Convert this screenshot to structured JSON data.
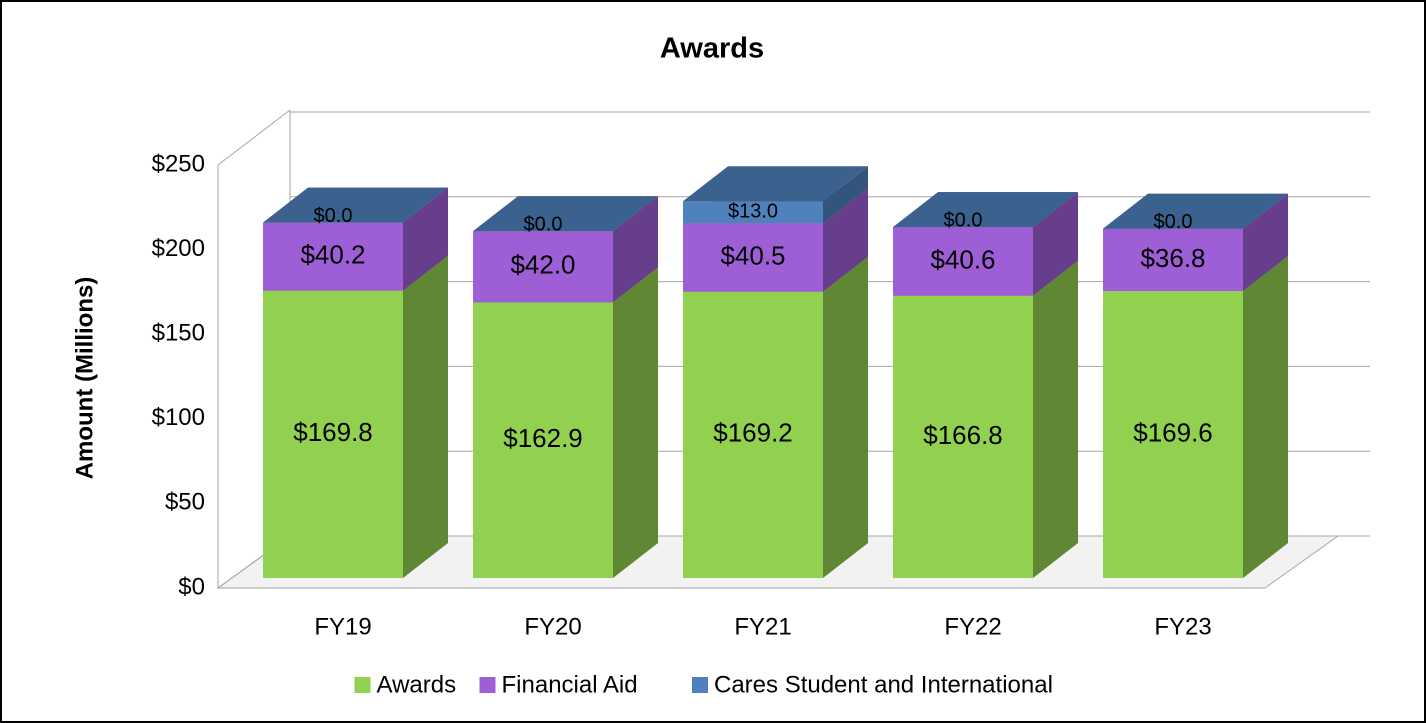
{
  "chart_data": {
    "type": "bar3d_stacked",
    "title": "Awards",
    "y_label": "Amount (Millions)",
    "categories": [
      "FY19",
      "FY20",
      "FY21",
      "FY22",
      "FY23"
    ],
    "series": [
      {
        "name": "Awards",
        "color": "#92d050",
        "values": [
          169.8,
          162.9,
          169.2,
          166.8,
          169.6
        ],
        "value_labels": [
          "$169.8",
          "$162.9",
          "$169.2",
          "$166.8",
          "$169.6"
        ]
      },
      {
        "name": "Financial Aid",
        "color": "#9e5fd6",
        "values": [
          40.2,
          42.0,
          40.5,
          40.6,
          36.8
        ],
        "value_labels": [
          "$40.2",
          "$42.0",
          "$40.5",
          "$40.6",
          "$36.8"
        ]
      },
      {
        "name": "Cares Student and International",
        "color": "#4f81bd",
        "values": [
          0,
          0,
          13.0,
          0,
          0
        ],
        "value_labels": [
          "$0.0",
          "$0.0",
          "$13.0",
          "$0.0",
          "$0.0"
        ]
      }
    ],
    "ylim": [
      0,
      250
    ],
    "yticks": [
      {
        "value": 0,
        "label": "$0"
      },
      {
        "value": 50,
        "label": "$50"
      },
      {
        "value": 100,
        "label": "$100"
      },
      {
        "value": 150,
        "label": "$150"
      },
      {
        "value": 200,
        "label": "$200"
      },
      {
        "value": 250,
        "label": "$250"
      }
    ],
    "grid": true,
    "legend": "bottom"
  }
}
